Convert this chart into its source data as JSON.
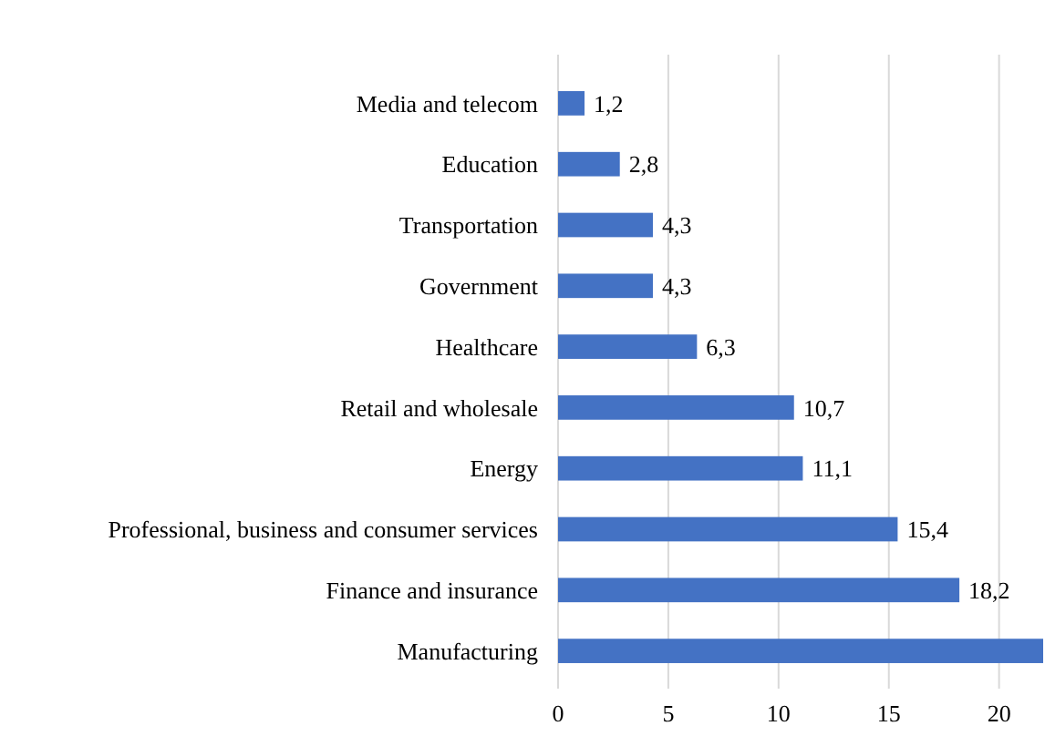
{
  "chart_data": {
    "type": "bar",
    "orientation": "horizontal",
    "categories": [
      "Media and telecom",
      "Education",
      "Transportation",
      "Government",
      "Healthcare",
      "Retail and wholesale",
      "Energy",
      "Professional, business and consumer services",
      "Finance and insurance",
      "Manufacturing"
    ],
    "values": [
      1.2,
      2.8,
      4.3,
      4.3,
      6.3,
      10.7,
      11.1,
      15.4,
      18.2,
      22
    ],
    "value_labels": [
      "1,2",
      "2,8",
      "4,3",
      "4,3",
      "6,3",
      "10,7",
      "11,1",
      "15,4",
      "18,2",
      null
    ],
    "color": "#4472c4",
    "xlim": [
      0,
      22
    ],
    "xticks": [
      0,
      5,
      10,
      15,
      20
    ],
    "grid": "x"
  }
}
